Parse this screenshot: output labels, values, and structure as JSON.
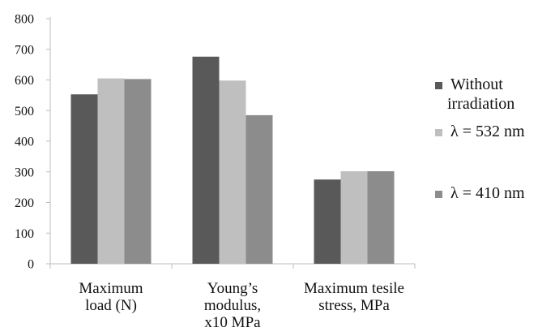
{
  "chart_data": {
    "type": "bar",
    "title": "",
    "xlabel": "",
    "ylabel": "",
    "ylim": [
      0,
      800
    ],
    "yticks": [
      0,
      100,
      200,
      300,
      400,
      500,
      600,
      700,
      800
    ],
    "grid": false,
    "legend_position": "right",
    "categories": [
      [
        "Maximum",
        "load (N)"
      ],
      [
        "Young’s",
        "modulus,",
        "x10 MPa"
      ],
      [
        "Maximum tesile",
        "stress,  MPa"
      ]
    ],
    "series": [
      {
        "name": [
          "Without",
          "irradiation"
        ],
        "color": "#595959",
        "values": [
          553,
          676,
          275
        ]
      },
      {
        "name": [
          "λ =  532 nm"
        ],
        "color": "#bfbfbf",
        "values": [
          605,
          598,
          302
        ]
      },
      {
        "name": [
          "λ = 410 nm"
        ],
        "color": "#8c8c8c",
        "values": [
          603,
          485,
          302
        ]
      }
    ]
  }
}
